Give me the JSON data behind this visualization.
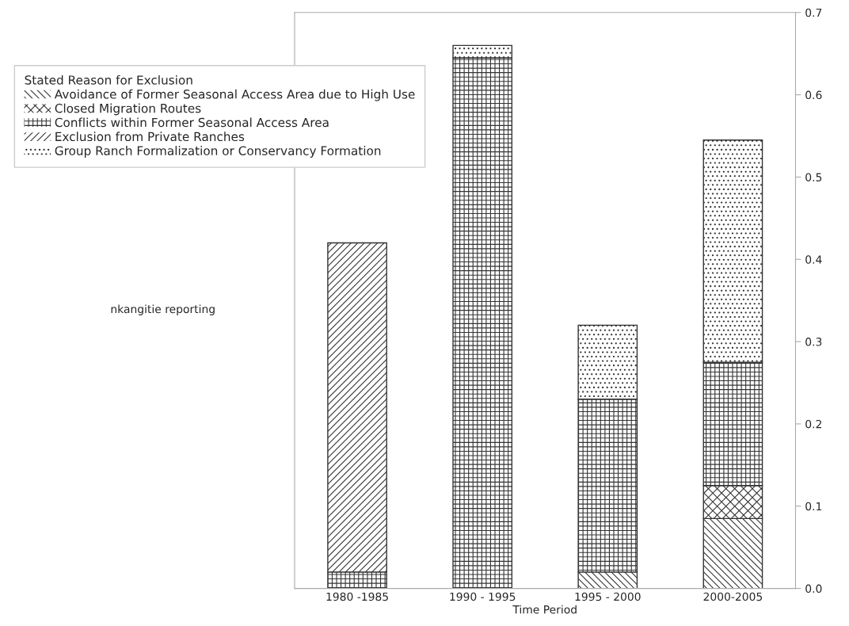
{
  "chart_data": {
    "type": "bar",
    "stacked": true,
    "xlabel": "Time Period",
    "legend_title": "Stated Reason for Exclusion",
    "legend": "top left",
    "categories": [
      "1980 -1985",
      "1990 - 1995",
      "1995 - 2000",
      "2000-2005"
    ],
    "series": [
      {
        "name": "Avoidance of Former Seasonal Access Area due to High Use",
        "color": "#333333",
        "values": [
          0,
          0,
          0.02,
          0.085
        ]
      },
      {
        "name": "Closed Migration Routes",
        "color": "#333333",
        "values": [
          0,
          0,
          0,
          0.04
        ]
      },
      {
        "name": "Conflicts within Former Seasonal Access Area",
        "color": "#333333",
        "values": [
          0.02,
          0.645,
          0.21,
          0.15
        ]
      },
      {
        "name": "Exclusion from Private Ranches",
        "color": "#333333",
        "values": [
          0.4,
          0,
          0,
          0
        ]
      },
      {
        "name": "Group Ranch Formalization or Conservancy Formation",
        "color": "#333333",
        "values": [
          0,
          0.015,
          0.09,
          0.27
        ]
      }
    ],
    "ylim": [
      0,
      0.7
    ],
    "yticks": [
      {
        "value": 0,
        "label": "0.0"
      },
      {
        "value": 0.1,
        "label": "0.1"
      },
      {
        "value": 0.2,
        "label": "0.2"
      },
      {
        "value": 0.3,
        "label": "0.3"
      },
      {
        "value": 0.4,
        "label": "0.4"
      },
      {
        "value": 0.5,
        "label": "0.5"
      },
      {
        "value": 0.6,
        "label": "0.6"
      },
      {
        "value": 0.7,
        "label": "0.7"
      }
    ],
    "grid": false,
    "annotations": [
      "nkangitie reporting"
    ]
  }
}
